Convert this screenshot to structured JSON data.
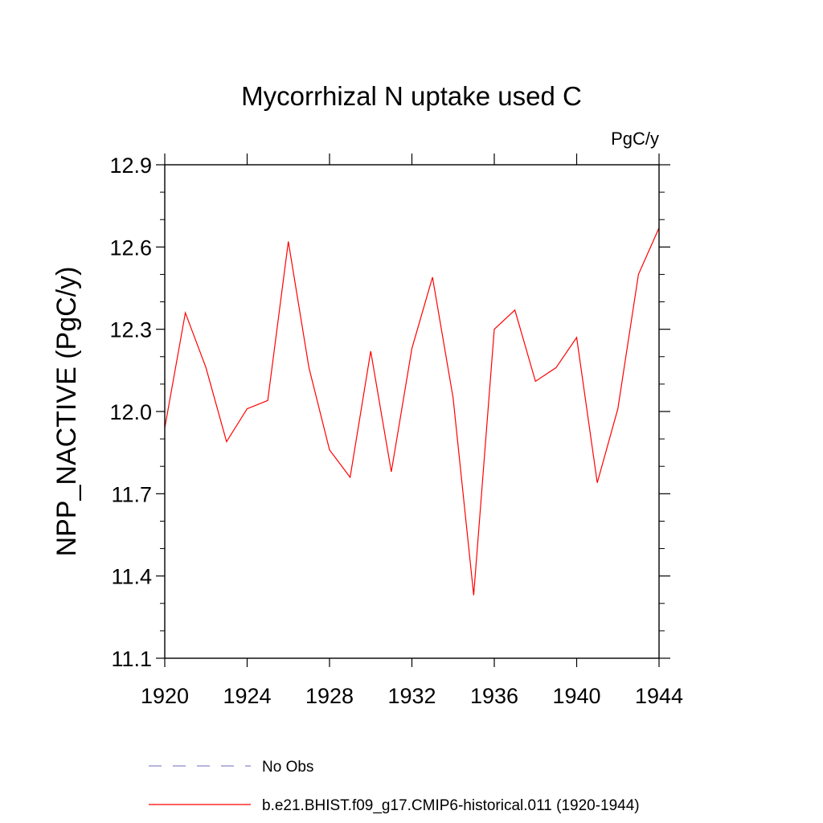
{
  "chart_data": {
    "type": "line",
    "title": "Mycorrhizal N uptake used C",
    "units_label": "PgC/y",
    "xlabel": "",
    "ylabel": "NPP_NACTIVE  (PgC/y)",
    "xlim": [
      1920,
      1944
    ],
    "ylim": [
      11.1,
      12.9
    ],
    "x_ticks": [
      "1920",
      "1924",
      "1928",
      "1932",
      "1936",
      "1940",
      "1944"
    ],
    "y_ticks": [
      "11.1",
      "11.4",
      "11.7",
      "12.0",
      "12.3",
      "12.6",
      "12.9"
    ],
    "x": [
      1920,
      1921,
      1922,
      1923,
      1924,
      1925,
      1926,
      1927,
      1928,
      1929,
      1930,
      1931,
      1932,
      1933,
      1934,
      1935,
      1936,
      1937,
      1938,
      1939,
      1940,
      1941,
      1942,
      1943,
      1944
    ],
    "series": [
      {
        "name": "b.e21.BHIST.f09_g17.CMIP6-historical.011 (1920-1944)",
        "color": "#ff0000",
        "values": [
          11.94,
          12.36,
          12.16,
          11.89,
          12.01,
          12.04,
          12.62,
          12.16,
          11.86,
          11.76,
          12.22,
          11.78,
          12.23,
          12.49,
          12.05,
          11.33,
          12.3,
          12.37,
          12.11,
          12.16,
          12.27,
          11.74,
          12.01,
          12.5,
          12.67
        ]
      }
    ],
    "legend": {
      "placement": "bottom",
      "entries": [
        {
          "label": "No Obs",
          "style": "dashed",
          "color": "#8a87c8"
        },
        {
          "label": "b.e21.BHIST.f09_g17.CMIP6-historical.011 (1920-1944)",
          "style": "solid",
          "color": "#ff0000"
        }
      ]
    },
    "grid": false
  }
}
